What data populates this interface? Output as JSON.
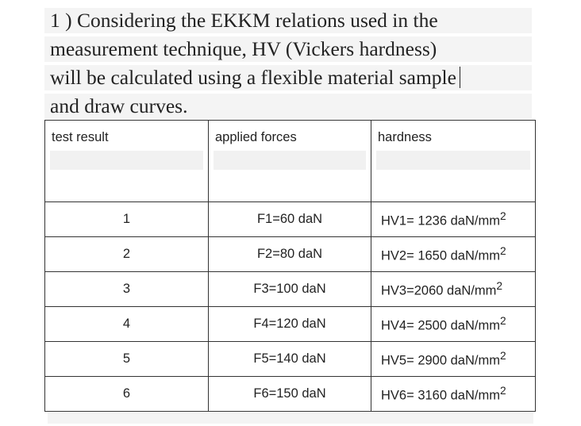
{
  "question": {
    "lines": [
      "1 ) Considering the EKKM relations used in the",
      "measurement technique, HV (Vickers hardness)",
      "will be calculated using a flexible material sample",
      "and draw curves."
    ]
  },
  "table": {
    "headers": [
      "test result",
      "applied forces",
      "hardness"
    ],
    "unit_base": "daN/mm",
    "unit_exp": "2",
    "rows": [
      {
        "test": "1",
        "force": "F1=60 daN",
        "hardness": "HV1= 1236 "
      },
      {
        "test": "2",
        "force": "F2=80 daN",
        "hardness": "HV2= 1650 "
      },
      {
        "test": "3",
        "force": "F3=100 daN",
        "hardness": "HV3=2060 "
      },
      {
        "test": "4",
        "force": "F4=120 daN",
        "hardness": "HV4= 2500 "
      },
      {
        "test": "5",
        "force": "F5=140 daN",
        "hardness": "HV5= 2900 "
      },
      {
        "test": "6",
        "force": "F6=150 daN",
        "hardness": "HV6= 3160 "
      }
    ]
  }
}
